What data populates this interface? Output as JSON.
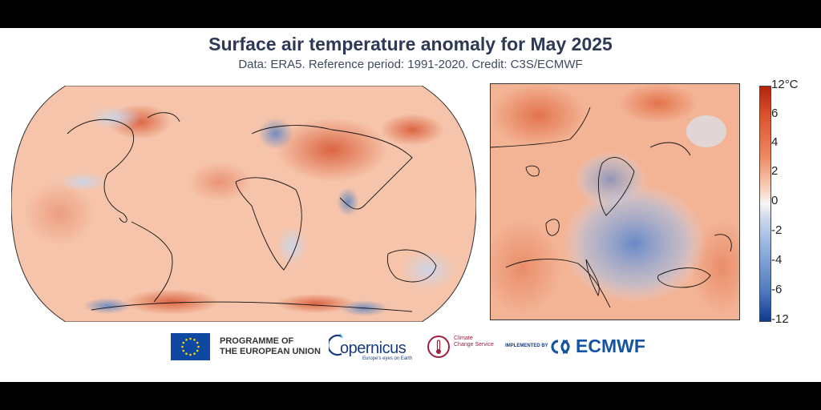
{
  "title": "Surface air temperature anomaly for May 2025",
  "subtitle": "Data: ERA5.  Reference period: 1991-2020.  Credit: C3S/ECMWF",
  "maps": {
    "global": "world-anomaly-map",
    "europe": "europe-anomaly-map"
  },
  "colorbar": {
    "unit": "°C",
    "ticks": [
      "12",
      "6",
      "4",
      "2",
      "0",
      "-2",
      "-4",
      "-6",
      "-12"
    ],
    "top_color": "#b2240c",
    "bottom_color": "#0d3a8e",
    "mid_color": "#f7f6f4"
  },
  "logos": {
    "eu_line1": "PROGRAMME OF",
    "eu_line2": "THE EUROPEAN UNION",
    "copernicus": "opernicus",
    "copernicus_tagline": "Europe's eyes on Earth",
    "c3s_line1": "Climate",
    "c3s_line2": "Change Service",
    "implemented_by": "IMPLEMENTED BY",
    "ecmwf": "ECMWF"
  },
  "colors": {
    "title": "#2d3956",
    "warm": "#ef8a62",
    "cold": "#6f93c9"
  }
}
